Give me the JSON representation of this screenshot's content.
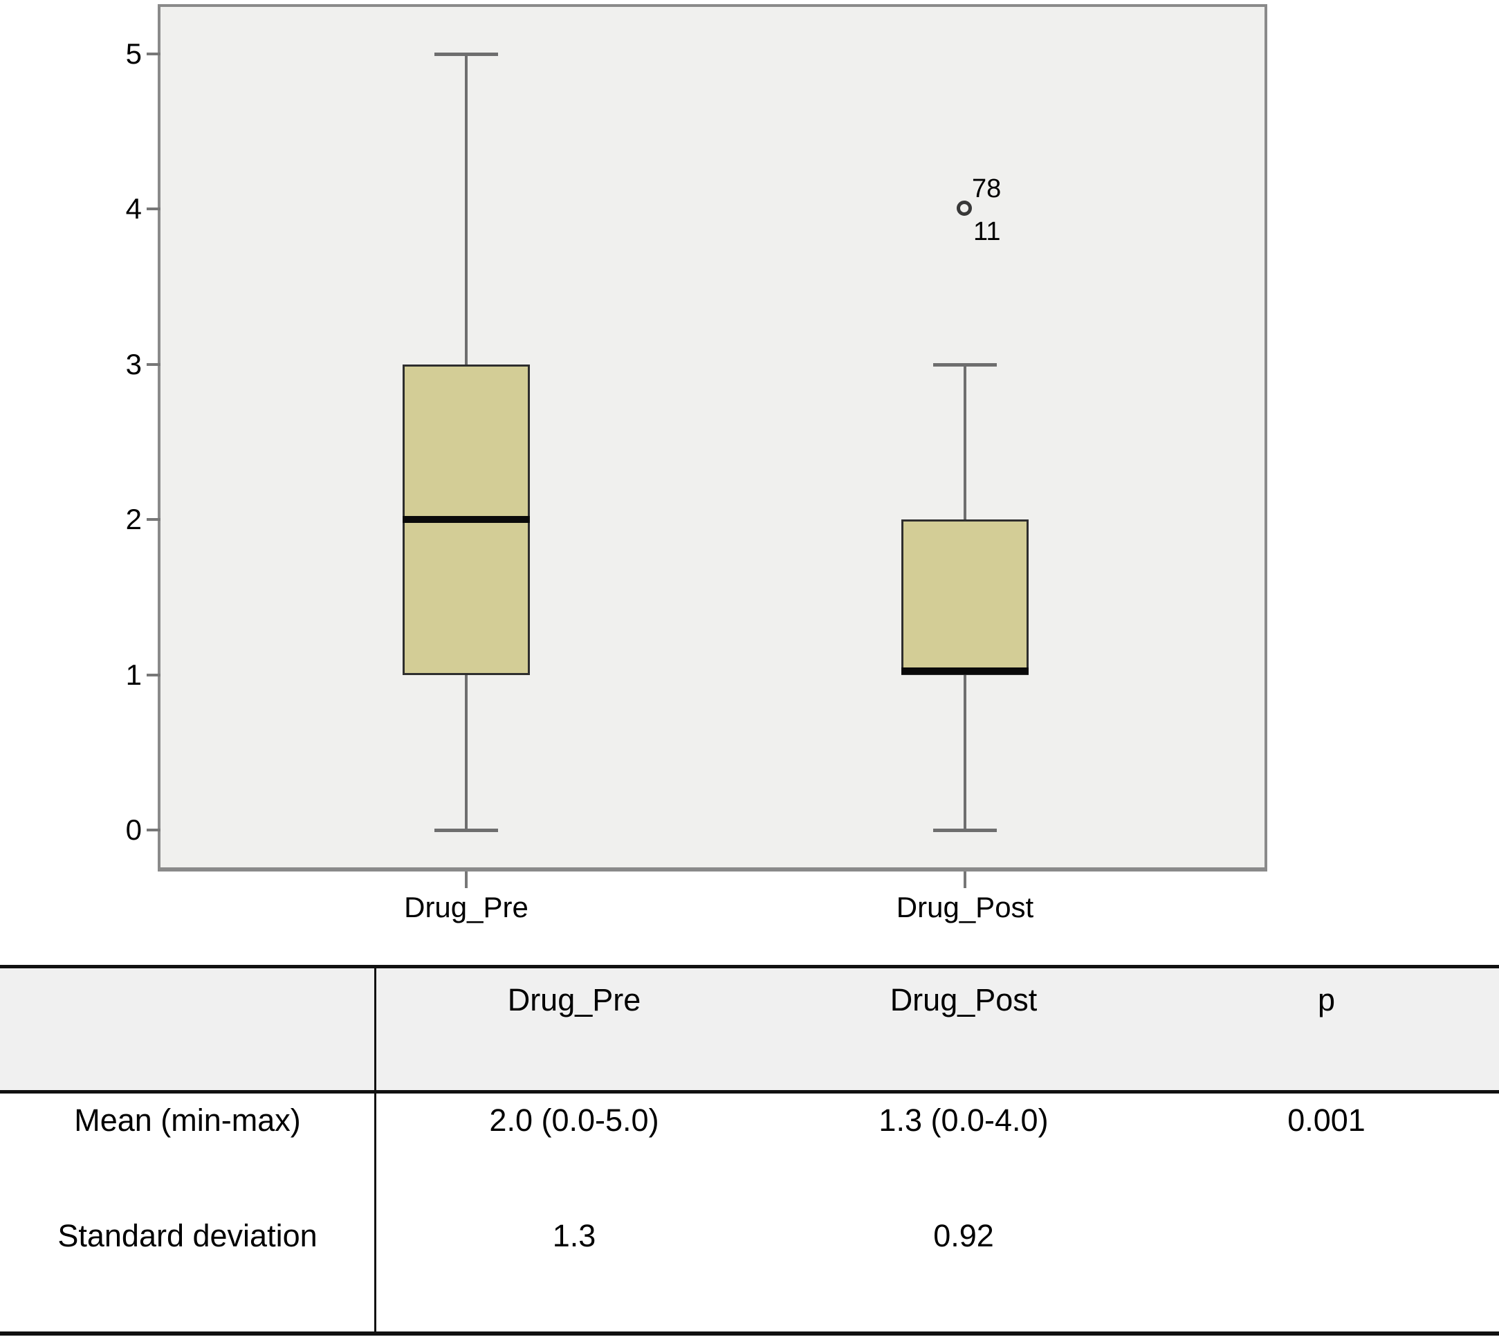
{
  "chart_data": {
    "type": "boxplot",
    "title": "",
    "xlabel": "",
    "ylabel": "",
    "yticks": [
      0,
      1,
      2,
      3,
      4,
      5
    ],
    "ylim": [
      -0.3,
      5.3
    ],
    "grid": false,
    "legend": "none",
    "categories": [
      "Drug_Pre",
      "Drug_Post"
    ],
    "series": [
      {
        "name": "Drug_Pre",
        "whisker_low": 0,
        "q1": 1,
        "median": 2,
        "q3": 3,
        "whisker_high": 5,
        "outliers": []
      },
      {
        "name": "Drug_Post",
        "whisker_low": 0,
        "q1": 1,
        "median": 1,
        "q3": 2,
        "whisker_high": 3,
        "outliers": [
          {
            "value": 4,
            "label_above": "78",
            "label_below": "11"
          }
        ]
      }
    ],
    "colors": {
      "box_fill": "#d3cd96",
      "box_border": "#2e2e2e",
      "median": "#0a0a0a",
      "whisker": "#6e6e6e",
      "tick": "#777777",
      "plot_bg": "#f0f0ee",
      "frame": "#8a8a8a",
      "text": "#000000"
    }
  },
  "table": {
    "headers": [
      "",
      "Drug_Pre",
      "Drug_Post",
      "p"
    ],
    "rows": [
      {
        "label": "Mean (min-max)",
        "values": [
          "2.0 (0.0-5.0)",
          "1.3 (0.0-4.0)",
          "0.001"
        ]
      },
      {
        "label": "Standard deviation",
        "values": [
          "1.3",
          "0.92",
          ""
        ]
      }
    ]
  }
}
